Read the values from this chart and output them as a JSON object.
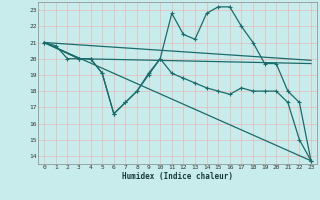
{
  "xlabel": "Humidex (Indice chaleur)",
  "bg_color": "#c8ecec",
  "grid_color": "#b0d8d8",
  "line_color": "#1a6b6b",
  "xlim": [
    -0.5,
    23.5
  ],
  "ylim": [
    13.5,
    23.5
  ],
  "yticks": [
    14,
    15,
    16,
    17,
    18,
    19,
    20,
    21,
    22,
    23
  ],
  "xticks": [
    0,
    1,
    2,
    3,
    4,
    5,
    6,
    7,
    8,
    9,
    10,
    11,
    12,
    13,
    14,
    15,
    16,
    17,
    18,
    19,
    20,
    21,
    22,
    23
  ],
  "series": [
    {
      "x": [
        0,
        1,
        2,
        3,
        4,
        5,
        6,
        7,
        8,
        9,
        10,
        11,
        12,
        13,
        14,
        15,
        16,
        17,
        18,
        19,
        20,
        21,
        22,
        23
      ],
      "y": [
        21.0,
        20.8,
        20.0,
        20.0,
        20.0,
        19.1,
        16.6,
        17.3,
        18.0,
        19.1,
        20.0,
        22.8,
        21.5,
        21.2,
        22.8,
        23.2,
        23.2,
        22.0,
        21.0,
        19.7,
        19.7,
        18.0,
        17.3,
        13.7
      ],
      "marker": true,
      "linewidth": 0.9
    },
    {
      "x": [
        0,
        3,
        23
      ],
      "y": [
        21.0,
        20.0,
        19.7
      ],
      "marker": false,
      "linewidth": 0.9
    },
    {
      "x": [
        0,
        23
      ],
      "y": [
        21.0,
        19.9
      ],
      "marker": false,
      "linewidth": 0.9
    },
    {
      "x": [
        0,
        23
      ],
      "y": [
        21.0,
        13.7
      ],
      "marker": false,
      "linewidth": 0.9
    },
    {
      "x": [
        0,
        3,
        4,
        5,
        6,
        7,
        8,
        9,
        10,
        11,
        12,
        13,
        14,
        15,
        16,
        17,
        18,
        19,
        20,
        21,
        22,
        23
      ],
      "y": [
        21.0,
        20.0,
        20.0,
        19.1,
        16.6,
        17.3,
        18.0,
        19.0,
        20.0,
        19.1,
        18.8,
        18.5,
        18.2,
        18.0,
        17.8,
        18.2,
        18.0,
        18.0,
        18.0,
        17.3,
        15.0,
        13.7
      ],
      "marker": true,
      "linewidth": 0.9
    }
  ]
}
